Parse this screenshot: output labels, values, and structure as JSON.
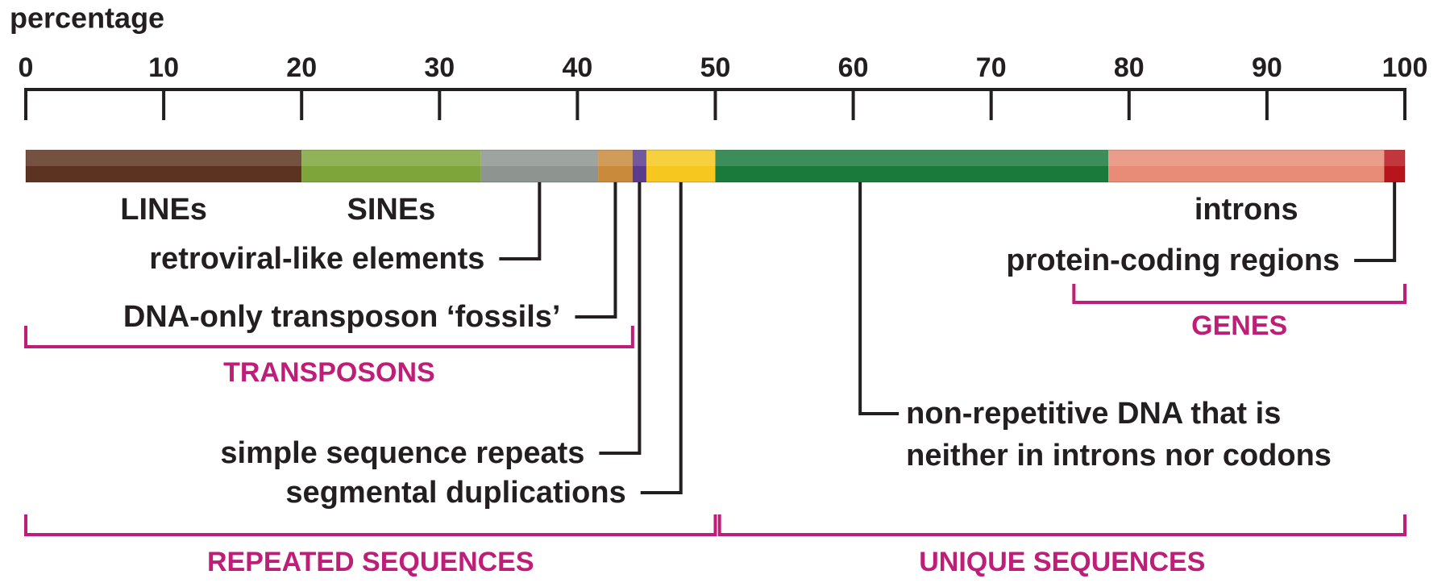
{
  "chart_data": {
    "type": "stacked-bar",
    "title": "percentage",
    "xlim": [
      0,
      100
    ],
    "xticks": [
      0,
      10,
      20,
      30,
      40,
      50,
      60,
      70,
      80,
      90,
      100
    ],
    "categories": [
      "LINEs",
      "SINEs",
      "retroviral-like elements",
      "DNA-only transposon ‘fossils’",
      "simple sequence repeats",
      "segmental duplications",
      "non-repetitive DNA that is neither in introns nor codons",
      "introns",
      "protein-coding regions"
    ],
    "values": [
      20,
      13,
      8.5,
      2.5,
      1,
      5,
      28.5,
      20,
      1.5
    ],
    "colors": [
      "#5c3320",
      "#7ea53a",
      "#8e9490",
      "#c98a3c",
      "#5a3b8c",
      "#f6c81f",
      "#1a7a3c",
      "#e88c78",
      "#b8141c"
    ],
    "brackets": [
      {
        "label": "TRANSPOSONS",
        "range": [
          0,
          44
        ]
      },
      {
        "label": "GENES",
        "range": [
          76,
          100
        ]
      },
      {
        "label": "REPEATED SEQUENCES",
        "range": [
          0,
          50
        ]
      },
      {
        "label": "UNIQUE SEQUENCES",
        "range": [
          50.3,
          100
        ]
      }
    ],
    "bracket_color": "#be1e78"
  }
}
